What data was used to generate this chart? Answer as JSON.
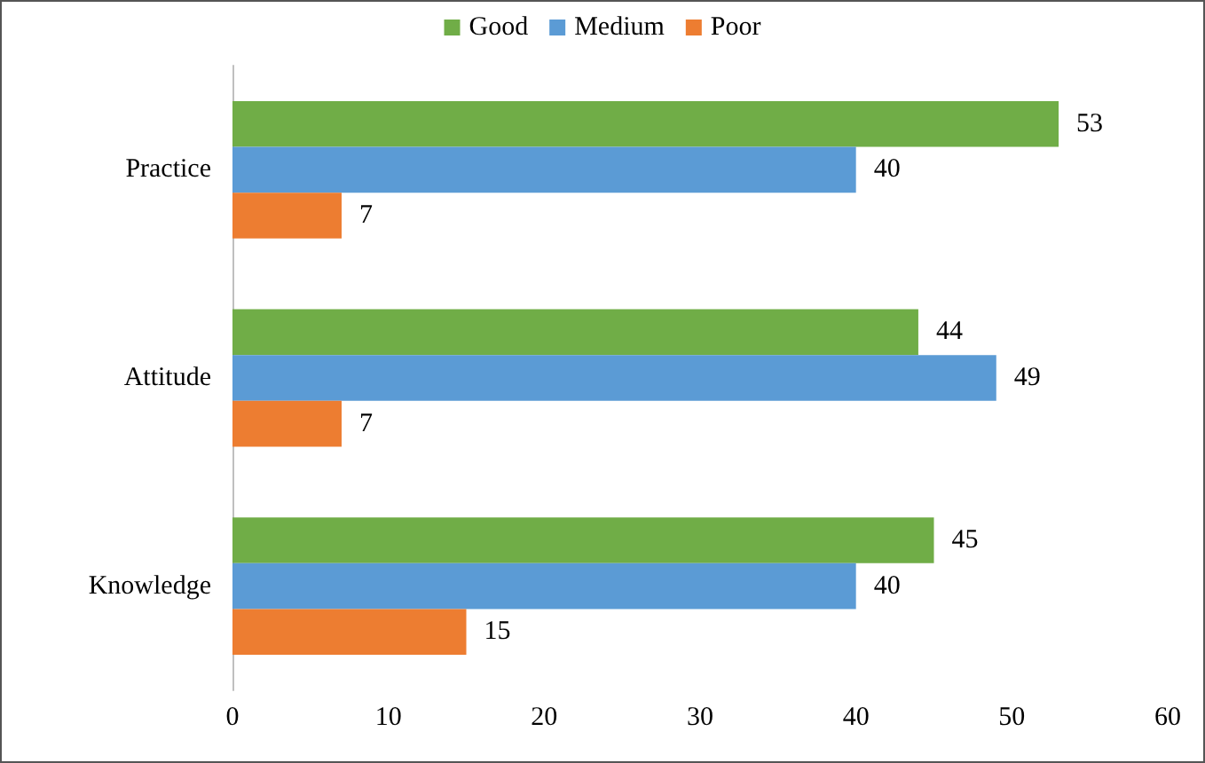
{
  "chart_data": {
    "type": "bar",
    "orientation": "horizontal",
    "categories": [
      "Practice",
      "Attitude",
      "Knowledge"
    ],
    "series": [
      {
        "name": "Good",
        "color": "#70ad47",
        "values": [
          53,
          44,
          45
        ]
      },
      {
        "name": "Medium",
        "color": "#5b9bd5",
        "values": [
          40,
          49,
          40
        ]
      },
      {
        "name": "Poor",
        "color": "#ed7d31",
        "values": [
          7,
          7,
          15
        ]
      }
    ],
    "xlim": [
      0,
      60
    ],
    "xticks": [
      0,
      10,
      20,
      30,
      40,
      50,
      60
    ],
    "grid": false,
    "legend": "top",
    "data_labels": true
  }
}
